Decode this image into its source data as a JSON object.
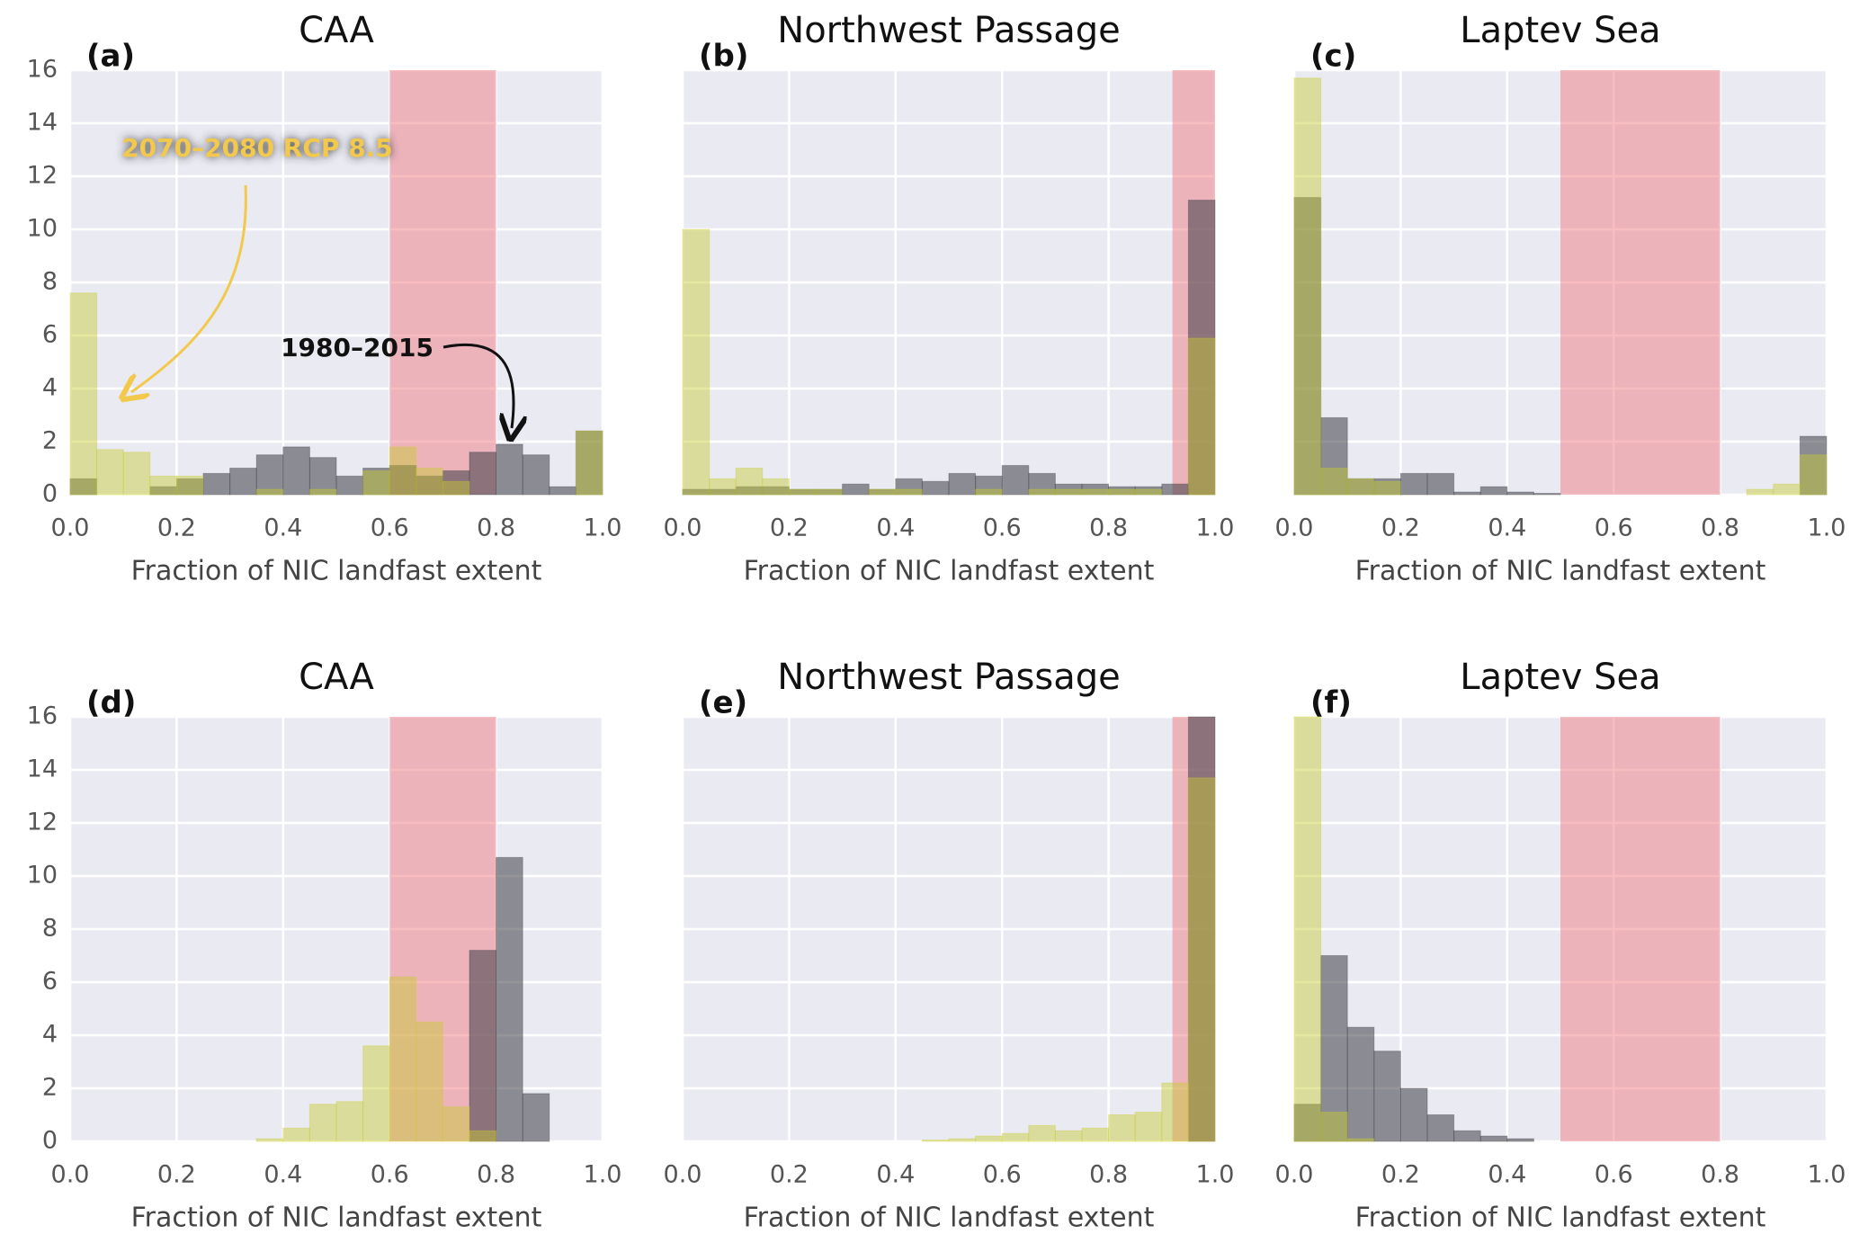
{
  "chart_data": [
    {
      "type": "histogram",
      "panel_label": "(a)",
      "title": "CAA",
      "xlabel": "Fraction of NIC landfast extent",
      "bins": [
        0,
        0.05,
        0.1,
        0.15,
        0.2,
        0.25,
        0.3,
        0.35,
        0.4,
        0.45,
        0.5,
        0.55,
        0.6,
        0.65,
        0.7,
        0.75,
        0.8,
        0.85,
        0.9,
        0.95,
        1.0
      ],
      "series": [
        {
          "color": "#3c3c46",
          "values": [
            0.6,
            0,
            0,
            0.3,
            0.6,
            0.8,
            1.0,
            1.5,
            1.8,
            1.4,
            0.7,
            1.0,
            1.1,
            0.7,
            0.9,
            1.6,
            1.9,
            1.5,
            0.3,
            2.4
          ]
        },
        {
          "color": "#c8cc30",
          "values": [
            7.6,
            1.7,
            1.6,
            0.7,
            0.7,
            0,
            0,
            0.2,
            0,
            0.2,
            0,
            0.9,
            1.8,
            1.0,
            0.5,
            0,
            0,
            0,
            0,
            2.4
          ]
        }
      ],
      "span": [
        0.6,
        0.8
      ],
      "span_color": "#f07c84",
      "annotations": [
        "2070–2080 RCP 8.5",
        "1980–2015"
      ],
      "xlim": [
        0,
        1
      ],
      "ylim": [
        0,
        16
      ],
      "xticks": [
        {
          "value": 0,
          "label": "0.0"
        },
        0.2,
        0.4,
        0.6,
        0.8,
        {
          "value": 1,
          "label": "1.0"
        }
      ],
      "yticks": [
        0,
        2,
        4,
        6,
        8,
        10,
        12,
        14,
        16
      ],
      "grid": true
    },
    {
      "type": "histogram",
      "panel_label": "(b)",
      "title": "Northwest Passage",
      "xlabel": "Fraction of NIC landfast extent",
      "bins": [
        0,
        0.05,
        0.1,
        0.15,
        0.2,
        0.25,
        0.3,
        0.35,
        0.4,
        0.45,
        0.5,
        0.55,
        0.6,
        0.65,
        0.7,
        0.75,
        0.8,
        0.85,
        0.9,
        0.95,
        1.0
      ],
      "series": [
        {
          "color": "#3c3c46",
          "values": [
            0.2,
            0.2,
            0.3,
            0.3,
            0.2,
            0.2,
            0.4,
            0.2,
            0.6,
            0.5,
            0.8,
            0.7,
            1.1,
            0.8,
            0.4,
            0.4,
            0.3,
            0.3,
            0.4,
            11.1
          ]
        },
        {
          "color": "#c8cc30",
          "values": [
            10.0,
            0.6,
            1.0,
            0.6,
            0.2,
            0.2,
            0,
            0.2,
            0.2,
            0,
            0,
            0.2,
            0,
            0.2,
            0.2,
            0.2,
            0.2,
            0.2,
            0,
            5.9
          ]
        }
      ],
      "span": [
        0.92,
        1.0
      ],
      "span_color": "#f07c84",
      "xlim": [
        0,
        1
      ],
      "ylim": [
        0,
        16
      ],
      "xticks": [
        {
          "value": 0,
          "label": "0.0"
        },
        0.2,
        0.4,
        0.6,
        0.8,
        {
          "value": 1,
          "label": "1.0"
        }
      ],
      "yticks": [
        0,
        2,
        4,
        6,
        8,
        10,
        12,
        14,
        16
      ],
      "grid": true
    },
    {
      "type": "histogram",
      "panel_label": "(c)",
      "title": "Laptev Sea",
      "xlabel": "Fraction of NIC landfast extent",
      "bins": [
        0,
        0.05,
        0.1,
        0.15,
        0.2,
        0.25,
        0.3,
        0.35,
        0.4,
        0.45,
        0.5,
        0.55,
        0.6,
        0.65,
        0.7,
        0.75,
        0.8,
        0.85,
        0.9,
        0.95,
        1.0
      ],
      "series": [
        {
          "color": "#3c3c46",
          "values": [
            11.2,
            2.9,
            0.6,
            0.6,
            0.8,
            0.8,
            0.1,
            0.3,
            0.1,
            0.05,
            0,
            0,
            0,
            0,
            0,
            0,
            0,
            0,
            0,
            2.2
          ]
        },
        {
          "color": "#c8cc30",
          "values": [
            15.7,
            1.0,
            0.6,
            0.5,
            0,
            0,
            0,
            0,
            0,
            0,
            0,
            0,
            0,
            0,
            0,
            0,
            0,
            0.2,
            0.4,
            1.5
          ]
        }
      ],
      "span": [
        0.5,
        0.8
      ],
      "span_color": "#f07c84",
      "xlim": [
        0,
        1
      ],
      "ylim": [
        0,
        16
      ],
      "xticks": [
        {
          "value": 0,
          "label": "0.0"
        },
        0.2,
        0.4,
        0.6,
        0.8,
        {
          "value": 1,
          "label": "1.0"
        }
      ],
      "yticks": [
        0,
        2,
        4,
        6,
        8,
        10,
        12,
        14,
        16
      ],
      "grid": true
    },
    {
      "type": "histogram",
      "panel_label": "(d)",
      "title": "CAA",
      "xlabel": "Fraction of NIC landfast extent",
      "bins": [
        0,
        0.05,
        0.1,
        0.15,
        0.2,
        0.25,
        0.3,
        0.35,
        0.4,
        0.45,
        0.5,
        0.55,
        0.6,
        0.65,
        0.7,
        0.75,
        0.8,
        0.85,
        0.9,
        0.95,
        1.0
      ],
      "series": [
        {
          "color": "#3c3c46",
          "values": [
            0,
            0,
            0,
            0,
            0,
            0,
            0,
            0,
            0,
            0,
            0,
            0,
            0,
            0,
            0,
            7.2,
            10.7,
            1.8,
            0,
            0
          ]
        },
        {
          "color": "#c8cc30",
          "values": [
            0,
            0,
            0,
            0,
            0,
            0,
            0,
            0.1,
            0.5,
            1.4,
            1.5,
            3.6,
            6.2,
            4.5,
            1.3,
            0.4,
            0,
            0,
            0,
            0
          ]
        }
      ],
      "span": [
        0.6,
        0.8
      ],
      "span_color": "#f07c84",
      "xlim": [
        0,
        1
      ],
      "ylim": [
        0,
        16
      ],
      "xticks": [
        {
          "value": 0,
          "label": "0.0"
        },
        0.2,
        0.4,
        0.6,
        0.8,
        {
          "value": 1,
          "label": "1.0"
        }
      ],
      "yticks": [
        0,
        2,
        4,
        6,
        8,
        10,
        12,
        14,
        16
      ],
      "grid": true
    },
    {
      "type": "histogram",
      "panel_label": "(e)",
      "title": "Northwest Passage",
      "xlabel": "Fraction of NIC landfast extent",
      "bins": [
        0,
        0.05,
        0.1,
        0.15,
        0.2,
        0.25,
        0.3,
        0.35,
        0.4,
        0.45,
        0.5,
        0.55,
        0.6,
        0.65,
        0.7,
        0.75,
        0.8,
        0.85,
        0.9,
        0.95,
        1.0
      ],
      "series": [
        {
          "color": "#3c3c46",
          "values": [
            0,
            0,
            0,
            0,
            0,
            0,
            0,
            0,
            0,
            0,
            0,
            0,
            0,
            0,
            0,
            0,
            0,
            0,
            0,
            16
          ]
        },
        {
          "color": "#c8cc30",
          "values": [
            0,
            0,
            0,
            0,
            0,
            0,
            0,
            0,
            0,
            0.05,
            0.1,
            0.2,
            0.3,
            0.6,
            0.4,
            0.5,
            1.0,
            1.1,
            2.2,
            13.7
          ]
        }
      ],
      "span": [
        0.92,
        1.0
      ],
      "span_color": "#f07c84",
      "xlim": [
        0,
        1
      ],
      "ylim": [
        0,
        16
      ],
      "xticks": [
        {
          "value": 0,
          "label": "0.0"
        },
        0.2,
        0.4,
        0.6,
        0.8,
        {
          "value": 1,
          "label": "1.0"
        }
      ],
      "yticks": [
        0,
        2,
        4,
        6,
        8,
        10,
        12,
        14,
        16
      ],
      "grid": true
    },
    {
      "type": "histogram",
      "panel_label": "(f)",
      "title": "Laptev Sea",
      "xlabel": "Fraction of NIC landfast extent",
      "bins": [
        0,
        0.05,
        0.1,
        0.15,
        0.2,
        0.25,
        0.3,
        0.35,
        0.4,
        0.45,
        0.5,
        0.55,
        0.6,
        0.65,
        0.7,
        0.75,
        0.8,
        0.85,
        0.9,
        0.95,
        1.0
      ],
      "series": [
        {
          "color": "#3c3c46",
          "values": [
            1.4,
            7.0,
            4.3,
            3.4,
            2.0,
            1.0,
            0.4,
            0.2,
            0.1,
            0,
            0,
            0,
            0,
            0,
            0,
            0,
            0,
            0,
            0,
            0
          ]
        },
        {
          "color": "#c8cc30",
          "values": [
            16,
            1.1,
            0.1,
            0,
            0,
            0,
            0,
            0,
            0,
            0,
            0,
            0,
            0,
            0,
            0,
            0,
            0,
            0,
            0,
            0
          ]
        }
      ],
      "span": [
        0.5,
        0.8
      ],
      "span_color": "#f07c84",
      "xlim": [
        0,
        1
      ],
      "ylim": [
        0,
        16
      ],
      "xticks": [
        {
          "value": 0,
          "label": "0.0"
        },
        0.2,
        0.4,
        0.6,
        0.8,
        {
          "value": 1,
          "label": "1.0"
        }
      ],
      "yticks": [
        0,
        2,
        4,
        6,
        8,
        10,
        12,
        14,
        16
      ],
      "grid": true
    }
  ]
}
